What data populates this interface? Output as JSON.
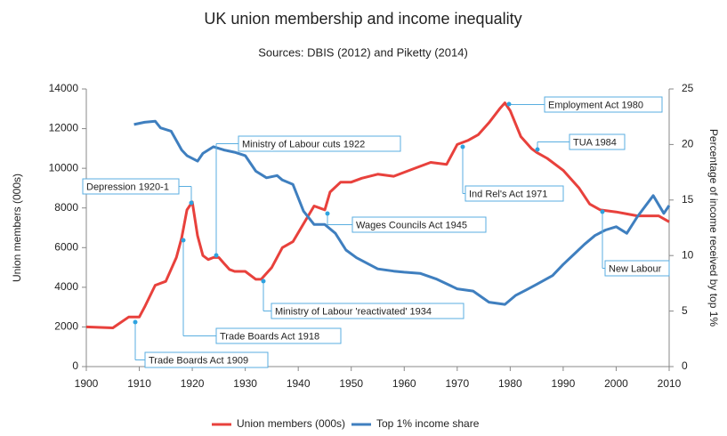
{
  "chart_data": {
    "type": "line",
    "title": "UK union membership and income inequality",
    "subtitle": "Sources: DBIS (2012) and Piketty (2014)",
    "y_label": "Union members (000s)",
    "y2_label": "Percentage of income received by top 1%",
    "xlim": [
      1900,
      2010
    ],
    "xticks": [
      1900,
      1910,
      1920,
      1930,
      1940,
      1950,
      1960,
      1970,
      1980,
      1990,
      2000,
      2010
    ],
    "ylim": [
      0,
      14000
    ],
    "yticks": [
      0,
      2000,
      4000,
      6000,
      8000,
      10000,
      12000,
      14000
    ],
    "y2lim": [
      0,
      25
    ],
    "y2ticks": [
      0,
      5,
      10,
      15,
      20,
      25
    ],
    "grid": false,
    "legend": "bottom",
    "series": [
      {
        "name": "Union members (000s)",
        "color": "#e8413c",
        "x": [
          1900,
          1905,
          1908,
          1910,
          1911,
          1913,
          1915,
          1917,
          1918,
          1919,
          1920,
          1921,
          1922,
          1923,
          1924,
          1925,
          1926,
          1927,
          1928,
          1930,
          1932,
          1933,
          1935,
          1937,
          1939,
          1941,
          1943,
          1944,
          1945,
          1946,
          1948,
          1950,
          1952,
          1955,
          1958,
          1960,
          1962,
          1965,
          1968,
          1970,
          1972,
          1974,
          1976,
          1978,
          1979,
          1980,
          1982,
          1984,
          1985,
          1987,
          1990,
          1993,
          1995,
          1997,
          2000,
          2002,
          2004,
          2008,
          2010
        ],
        "values": [
          2000,
          1950,
          2500,
          2500,
          3000,
          4100,
          4300,
          5500,
          6500,
          7900,
          8300,
          6600,
          5600,
          5400,
          5500,
          5500,
          5200,
          4900,
          4800,
          4800,
          4400,
          4400,
          5000,
          6000,
          6300,
          7200,
          8100,
          8000,
          7900,
          8800,
          9300,
          9300,
          9500,
          9700,
          9600,
          9800,
          10000,
          10300,
          10200,
          11200,
          11400,
          11700,
          12300,
          13000,
          13300,
          12900,
          11600,
          11000,
          10800,
          10500,
          9900,
          9000,
          8200,
          7900,
          7800,
          7700,
          7600,
          7600,
          7300
        ]
      },
      {
        "name": "Top 1% income share",
        "color": "#3f7fbf",
        "axis": "y2",
        "x": [
          1909,
          1911,
          1913,
          1914,
          1916,
          1918,
          1919,
          1921,
          1922,
          1924,
          1926,
          1928,
          1930,
          1932,
          1934,
          1936,
          1937,
          1939,
          1941,
          1943,
          1945,
          1947,
          1949,
          1951,
          1953,
          1955,
          1958,
          1960,
          1963,
          1966,
          1970,
          1973,
          1976,
          1979,
          1981,
          1983,
          1985,
          1988,
          1990,
          1992,
          1994,
          1996,
          1998,
          2000,
          2002,
          2004,
          2007,
          2009,
          2010
        ],
        "values": [
          21.8,
          22,
          22.1,
          21.5,
          21.2,
          19.5,
          19,
          18.5,
          19.2,
          19.8,
          19.5,
          19.3,
          19,
          17.6,
          17,
          17.2,
          16.8,
          16.4,
          14,
          12.8,
          12.8,
          12,
          10.5,
          9.8,
          9.3,
          8.8,
          8.6,
          8.5,
          8.4,
          7.9,
          7,
          6.8,
          5.8,
          5.6,
          6.4,
          6.9,
          7.4,
          8.2,
          9.2,
          10.1,
          11,
          11.8,
          12.3,
          12.6,
          12,
          13.5,
          15.4,
          13.8,
          14.5
        ]
      }
    ],
    "annotations": [
      "Depression 1920-1",
      "Ministry of Labour cuts 1922",
      "Employment Act 1980",
      "TUA 1984",
      "Ind Rel's Act 1971",
      "Wages Councils Act 1945",
      "New Labour",
      "Ministry of Labour 'reactivated' 1934",
      "Trade Boards Act 1918",
      "Trade Boards Act 1909"
    ]
  }
}
